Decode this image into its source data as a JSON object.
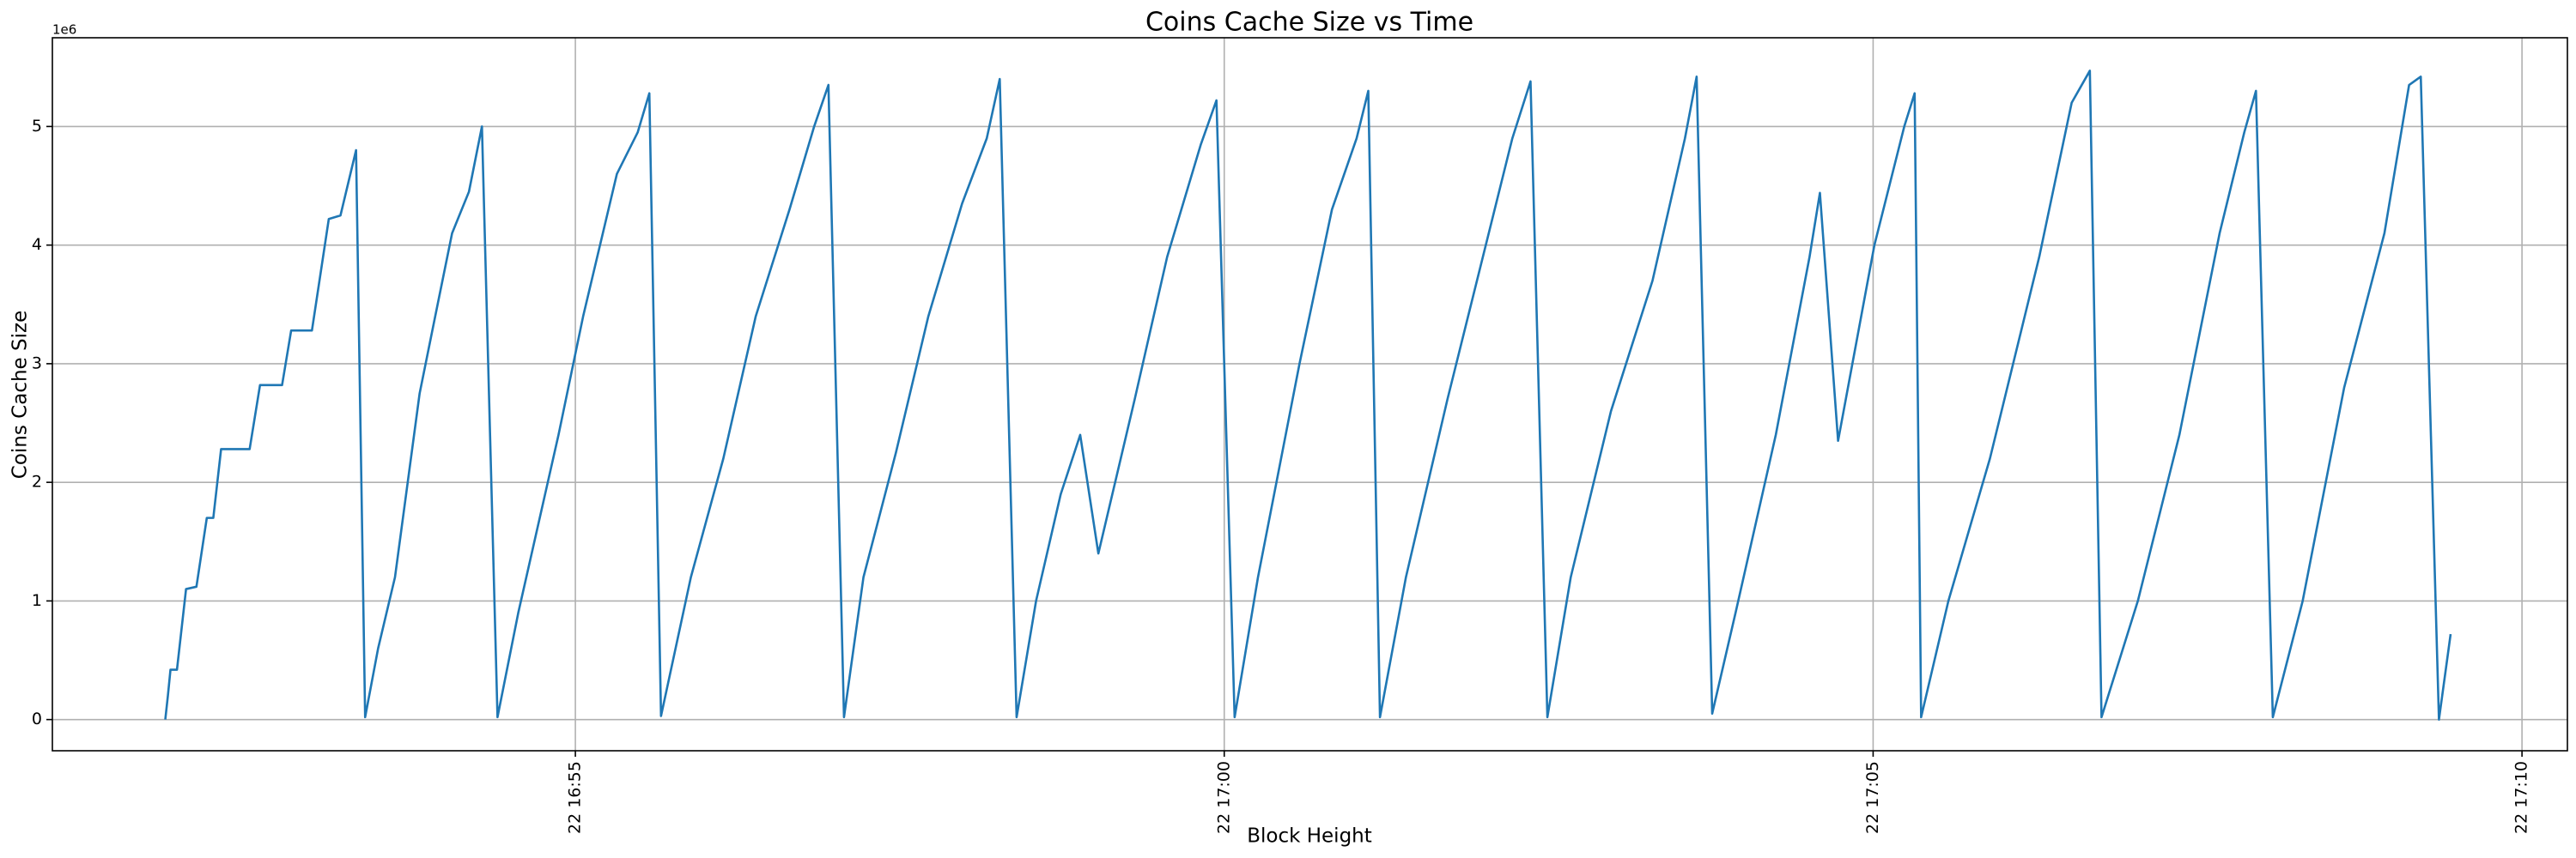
{
  "chart_data": {
    "type": "line",
    "title": "Coins Cache Size vs Time",
    "x_label": "Block Height",
    "y_label": "Coins Cache Size",
    "y_offset_label": "1e6",
    "grid": true,
    "color": "#1f77b4",
    "xlim": [
      1010.97,
      1030.35
    ],
    "xticks": [
      {
        "value": 1015,
        "label": "22 16:55"
      },
      {
        "value": 1020,
        "label": "22 17:00"
      },
      {
        "value": 1025,
        "label": "22 17:05"
      },
      {
        "value": 1030,
        "label": "22 17:10"
      }
    ],
    "ylim": [
      -263000,
      5748000
    ],
    "yticks": [
      {
        "value": 0,
        "label": "0"
      },
      {
        "value": 1000000,
        "label": "1"
      },
      {
        "value": 2000000,
        "label": "2"
      },
      {
        "value": 3000000,
        "label": "3"
      },
      {
        "value": 4000000,
        "label": "4"
      },
      {
        "value": 5000000,
        "label": "5"
      }
    ],
    "x": [
      1011.84,
      1011.86,
      1011.88,
      1011.93,
      1012.0,
      1012.08,
      1012.16,
      1012.21,
      1012.27,
      1012.49,
      1012.57,
      1012.74,
      1012.81,
      1012.97,
      1013.1,
      1013.19,
      1013.31,
      1013.38,
      1013.48,
      1013.61,
      1013.8,
      1013.92,
      1014.05,
      1014.18,
      1014.28,
      1014.4,
      1014.56,
      1014.87,
      1015.06,
      1015.32,
      1015.48,
      1015.57,
      1015.66,
      1015.89,
      1016.14,
      1016.39,
      1016.65,
      1016.84,
      1016.95,
      1017.07,
      1017.22,
      1017.47,
      1017.72,
      1017.98,
      1018.17,
      1018.27,
      1018.4,
      1018.55,
      1018.74,
      1018.89,
      1019.03,
      1019.31,
      1019.56,
      1019.82,
      1019.94,
      1020.08,
      1020.26,
      1020.58,
      1020.83,
      1021.02,
      1021.11,
      1021.2,
      1021.4,
      1021.72,
      1021.97,
      1022.22,
      1022.36,
      1022.49,
      1022.67,
      1022.98,
      1023.3,
      1023.55,
      1023.64,
      1023.76,
      1023.94,
      1024.25,
      1024.51,
      1024.59,
      1024.73,
      1025.01,
      1025.24,
      1025.32,
      1025.37,
      1025.58,
      1025.9,
      1026.28,
      1026.53,
      1026.67,
      1026.76,
      1027.04,
      1027.36,
      1027.67,
      1027.86,
      1027.95,
      1028.08,
      1028.31,
      1028.63,
      1028.94,
      1029.13,
      1029.22,
      1029.36,
      1029.45
    ],
    "values": [
      0,
      200000,
      420000,
      420000,
      1100000,
      1120000,
      1700000,
      1700000,
      2280000,
      2280000,
      2820000,
      2820000,
      3280000,
      3280000,
      4220000,
      4250000,
      4800000,
      20000,
      600000,
      1200000,
      2750000,
      3400000,
      4100000,
      4450000,
      5000000,
      20000,
      900000,
      2400000,
      3400000,
      4600000,
      4950000,
      5280000,
      30000,
      1200000,
      2200000,
      3400000,
      4300000,
      5000000,
      5350000,
      20000,
      1200000,
      2250000,
      3400000,
      4350000,
      4900000,
      5400000,
      20000,
      1000000,
      1900000,
      2400000,
      1400000,
      2700000,
      3900000,
      4850000,
      5220000,
      20000,
      1200000,
      3000000,
      4300000,
      4900000,
      5300000,
      20000,
      1200000,
      2700000,
      3800000,
      4900000,
      5380000,
      20000,
      1200000,
      2600000,
      3700000,
      4900000,
      5420000,
      50000,
      900000,
      2400000,
      3900000,
      4440000,
      2350000,
      4000000,
      5000000,
      5280000,
      20000,
      1000000,
      2200000,
      3900000,
      5200000,
      5470000,
      20000,
      1000000,
      2400000,
      4100000,
      4950000,
      5300000,
      20000,
      1000000,
      2800000,
      4100000,
      5350000,
      5420000,
      0,
      720000
    ]
  }
}
